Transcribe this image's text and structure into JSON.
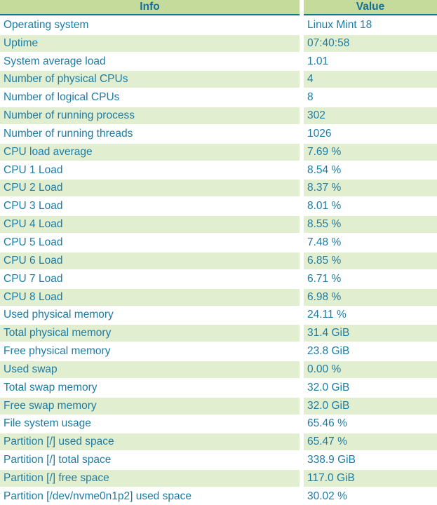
{
  "table": {
    "columns": [
      "Info",
      "Value"
    ],
    "rows": [
      {
        "info": "Operating system",
        "value": "Linux Mint 18"
      },
      {
        "info": "Uptime",
        "value": "07:40:58"
      },
      {
        "info": "System average load",
        "value": "1.01"
      },
      {
        "info": "Number of physical CPUs",
        "value": "4"
      },
      {
        "info": "Number of logical CPUs",
        "value": "8"
      },
      {
        "info": "Number of running process",
        "value": "302"
      },
      {
        "info": "Number of running threads",
        "value": "1026"
      },
      {
        "info": "CPU load average",
        "value": "7.69 %"
      },
      {
        "info": "CPU 1 Load",
        "value": "8.54 %"
      },
      {
        "info": "CPU 2 Load",
        "value": "8.37 %"
      },
      {
        "info": "CPU 3 Load",
        "value": "8.01 %"
      },
      {
        "info": "CPU 4 Load",
        "value": "8.55 %"
      },
      {
        "info": "CPU 5 Load",
        "value": "7.48 %"
      },
      {
        "info": "CPU 6 Load",
        "value": "6.85 %"
      },
      {
        "info": "CPU 7 Load",
        "value": "6.71 %"
      },
      {
        "info": "CPU 8 Load",
        "value": "6.98 %"
      },
      {
        "info": "Used physical memory",
        "value": "24.11 %"
      },
      {
        "info": "Total physical memory",
        "value": "31.4 GiB"
      },
      {
        "info": "Free physical memory",
        "value": "23.8 GiB"
      },
      {
        "info": "Used swap",
        "value": "0.00 %"
      },
      {
        "info": "Total swap memory",
        "value": "32.0 GiB"
      },
      {
        "info": "Free swap memory",
        "value": "32.0 GiB"
      },
      {
        "info": "File system usage",
        "value": "65.46 %"
      },
      {
        "info": "Partition [/] used space",
        "value": "65.47 %"
      },
      {
        "info": "Partition [/] total space",
        "value": "338.9 GiB"
      },
      {
        "info": "Partition [/] free space",
        "value": "117.0 GiB"
      },
      {
        "info": "Partition [/dev/nvme0n1p2] used space",
        "value": "30.02 %"
      }
    ]
  },
  "colors": {
    "header_bg": "#c5db9c",
    "alt_row_bg": "#e2eed0",
    "text": "#1d7ca4",
    "header_text": "#166f96",
    "header_border": "#0e7a8e",
    "page_bg": "#ffffff"
  }
}
